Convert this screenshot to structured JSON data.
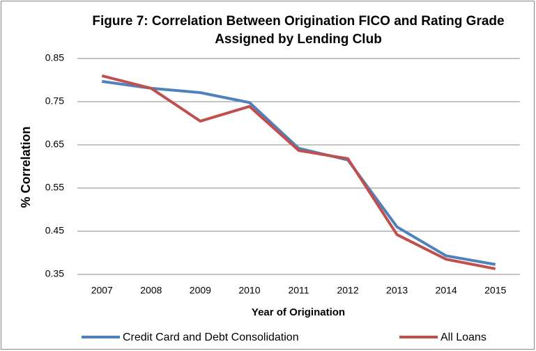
{
  "chart_data": {
    "type": "line",
    "title": "Figure 7: Correlation Between Origination FICO and Rating Grade Assigned by Lending Club",
    "x_label": "Year of Origination",
    "y_label": "% Correlation",
    "categories": [
      "2007",
      "2008",
      "2009",
      "2010",
      "2011",
      "2012",
      "2013",
      "2014",
      "2015"
    ],
    "series": [
      {
        "name": "Credit Card and Debt Consolidation",
        "color": "#4f81bd",
        "values": [
          0.797,
          0.781,
          0.771,
          0.748,
          0.642,
          0.615,
          0.46,
          0.393,
          0.373
        ]
      },
      {
        "name": "All Loans",
        "color": "#c0504d",
        "values": [
          0.81,
          0.781,
          0.705,
          0.739,
          0.637,
          0.618,
          0.442,
          0.385,
          0.363
        ]
      }
    ],
    "ylim": [
      0.35,
      0.85
    ],
    "yticks": [
      0.35,
      0.45,
      0.55,
      0.65,
      0.75,
      0.85
    ],
    "grid": true,
    "legend": "bottom"
  }
}
